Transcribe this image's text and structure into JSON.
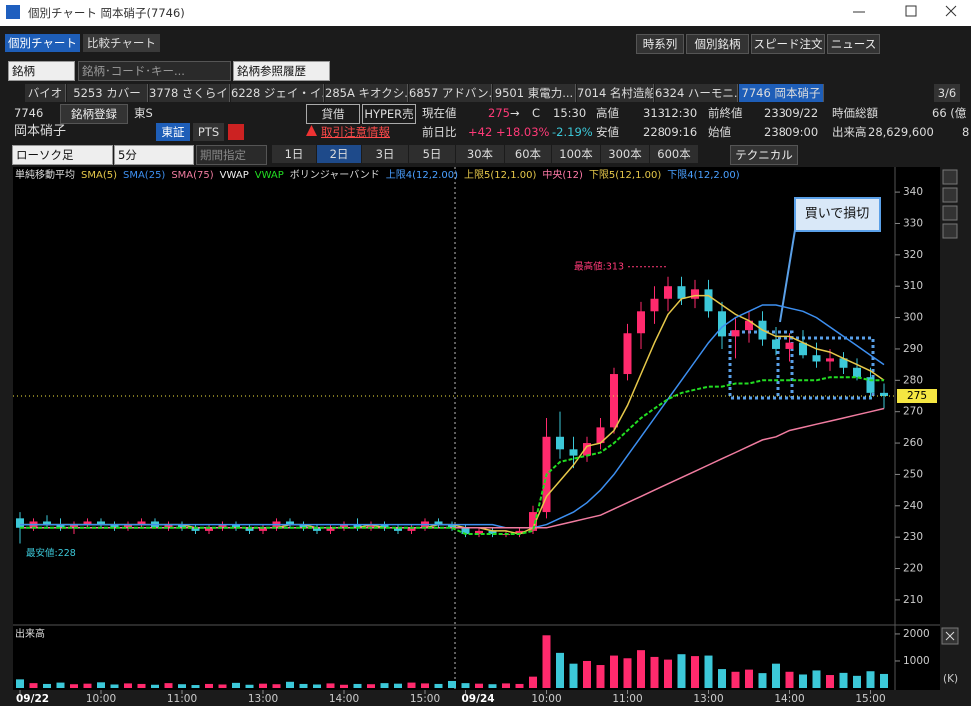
{
  "window": {
    "title": "個別チャート 岡本硝子(7746)"
  },
  "tabs": [
    "個別チャート",
    "比較チャート"
  ],
  "toolbar": [
    "時系列",
    "個別銘柄",
    "スピード注文",
    "ニュース"
  ],
  "search": {
    "type": "銘柄",
    "placeholder": "銘柄･コード･キー...",
    "history": "銘柄参照履歴"
  },
  "stock_tabs": [
    "バイオ",
    "5253 カバー",
    "3778 さくらイ...",
    "6228 ジェイ・イ...",
    "285A キオクシ...",
    "6857 アドバン...",
    "9501 東電力...",
    "7014 名村造船",
    "6324 ハーモニ...",
    "7746 岡本硝子"
  ],
  "page": "3/6",
  "info": {
    "code": "7746",
    "name": "岡本硝子",
    "register": "銘柄登録",
    "market": "東S",
    "exchanges": [
      "東証",
      "PTS"
    ],
    "margin": "貸借",
    "hyper": "HYPER売",
    "warning": "取引注意情報"
  },
  "quote": {
    "row1": [
      {
        "label": "現在値",
        "value": "275",
        "extra": "→",
        "flag": "C",
        "time": "15:30"
      },
      {
        "label": "高値",
        "value": "313",
        "time": "12:30"
      },
      {
        "label": "前終値",
        "value": "233",
        "time": "09/22"
      },
      {
        "label": "時価総額",
        "value": "66 (億"
      }
    ],
    "row2": [
      {
        "label": "前日比",
        "value": "+42",
        "pct": "+18.03%",
        "pct2": "-2.19%"
      },
      {
        "label": "安値",
        "value": "228",
        "time": "09:16"
      },
      {
        "label": "始値",
        "value": "238",
        "time": "09:00"
      },
      {
        "label": "出来高",
        "value": "28,629,600",
        "extra": "8"
      }
    ]
  },
  "controls": {
    "chart_type": "ローソク足",
    "interval": "5分",
    "range": "期間指定",
    "periods": [
      "1日",
      "2日",
      "3日",
      "5日",
      "30本",
      "60本",
      "100本",
      "300本",
      "600本"
    ],
    "active_period": "2日",
    "technical": "テクニカル"
  },
  "chart_data": {
    "type": "candlestick",
    "legend_title": "単純移動平均",
    "vwap_label": "VWAP",
    "bollinger_title": "ボリンジャーバンド",
    "bollinger": [
      {
        "name": "上限4(12,2.00)",
        "color": "#4aa0ff"
      },
      {
        "name": "上限5(12,1.00)",
        "color": "#e6c84a"
      },
      {
        "name": "中央(12)",
        "color": "#ff7aa8"
      },
      {
        "name": "下限5(12,1.00)",
        "color": "#e6c84a"
      },
      {
        "name": "下限4(12,2.00)",
        "color": "#4aa0ff"
      }
    ],
    "up_color": "#ff2a6d",
    "down_color": "#3cc8d8",
    "categories": [
      "09/22",
      null,
      null,
      null,
      null,
      null,
      "10:00",
      null,
      null,
      null,
      null,
      null,
      "11:00",
      null,
      null,
      null,
      null,
      null,
      "13:00",
      null,
      null,
      null,
      null,
      null,
      "14:00",
      null,
      null,
      null,
      null,
      null,
      "15:00",
      null,
      null,
      "09/24",
      null,
      null,
      null,
      null,
      null,
      "10:00",
      null,
      null,
      null,
      null,
      null,
      "11:00",
      null,
      null,
      null,
      null,
      null,
      "13:00",
      null,
      null,
      null,
      null,
      null,
      "14:00",
      null,
      null,
      null,
      null,
      null,
      "15:00",
      null
    ],
    "open": [
      236,
      233,
      235,
      234,
      233,
      234,
      235,
      234,
      233,
      234,
      235,
      233,
      234,
      233,
      232,
      233,
      234,
      233,
      232,
      233,
      235,
      234,
      233,
      232,
      233,
      234,
      233,
      234,
      233,
      232,
      233,
      235,
      234,
      233,
      231,
      232,
      231,
      231,
      232,
      238,
      262,
      258,
      256,
      260,
      265,
      282,
      295,
      302,
      306,
      310,
      306,
      309,
      302,
      294,
      296,
      299,
      293,
      290,
      292,
      288,
      286,
      287,
      284,
      281,
      276
    ],
    "high": [
      238,
      236,
      237,
      236,
      235,
      236,
      236,
      235,
      235,
      236,
      236,
      235,
      235,
      234,
      234,
      235,
      235,
      234,
      234,
      236,
      236,
      235,
      234,
      234,
      235,
      236,
      235,
      235,
      234,
      234,
      236,
      236,
      235,
      234,
      233,
      233,
      232,
      233,
      240,
      268,
      270,
      262,
      262,
      268,
      284,
      298,
      305,
      310,
      313,
      313,
      312,
      312,
      305,
      300,
      302,
      302,
      297,
      295,
      296,
      292,
      290,
      289,
      287,
      284,
      279
    ],
    "low": [
      228,
      232,
      233,
      232,
      231,
      233,
      233,
      232,
      232,
      233,
      233,
      232,
      232,
      231,
      231,
      232,
      232,
      231,
      231,
      232,
      233,
      232,
      231,
      231,
      232,
      232,
      232,
      232,
      231,
      231,
      232,
      233,
      232,
      230,
      230,
      230,
      230,
      230,
      231,
      236,
      255,
      252,
      254,
      258,
      263,
      280,
      290,
      298,
      302,
      304,
      303,
      300,
      290,
      287,
      292,
      291,
      288,
      286,
      287,
      284,
      283,
      282,
      280,
      274,
      271
    ],
    "close": [
      233,
      235,
      234,
      233,
      234,
      235,
      234,
      233,
      234,
      235,
      233,
      234,
      233,
      232,
      233,
      234,
      233,
      232,
      233,
      235,
      234,
      233,
      232,
      233,
      234,
      233,
      234,
      233,
      232,
      233,
      235,
      234,
      233,
      231,
      232,
      231,
      231,
      232,
      238,
      262,
      258,
      256,
      260,
      265,
      282,
      295,
      302,
      306,
      310,
      306,
      309,
      302,
      294,
      296,
      299,
      293,
      290,
      292,
      288,
      286,
      287,
      284,
      281,
      276,
      275
    ],
    "series": [
      {
        "name": "SMA(5)",
        "color": "#e6c84a",
        "values": [
          234,
          234,
          234,
          234,
          234,
          234,
          234,
          234,
          234,
          234,
          234,
          234,
          234,
          233,
          233,
          233,
          233,
          233,
          233,
          233,
          234,
          234,
          233,
          233,
          233,
          233,
          234,
          233,
          233,
          233,
          233,
          234,
          234,
          233,
          233,
          232,
          232,
          231,
          233,
          243,
          248,
          253,
          259,
          260,
          264,
          272,
          282,
          292,
          301,
          306,
          307,
          307,
          304,
          301,
          299,
          296,
          294,
          294,
          292,
          290,
          289,
          287,
          285,
          283,
          280
        ]
      },
      {
        "name": "SMA(25)",
        "color": "#3d8ff0",
        "values": [
          234,
          234,
          234,
          234,
          234,
          234,
          234,
          234,
          234,
          234,
          234,
          234,
          234,
          234,
          234,
          234,
          234,
          234,
          234,
          234,
          234,
          234,
          234,
          234,
          234,
          234,
          234,
          234,
          234,
          234,
          234,
          234,
          234,
          234,
          234,
          234,
          233,
          233,
          233,
          234,
          236,
          238,
          241,
          245,
          250,
          256,
          262,
          268,
          274,
          280,
          286,
          292,
          297,
          300,
          302,
          304,
          304,
          303,
          302,
          300,
          297,
          294,
          291,
          288,
          285
        ]
      },
      {
        "name": "SMA(75)",
        "color": "#f07ca0",
        "values": [
          233,
          233,
          233,
          233,
          233,
          233,
          233,
          233,
          233,
          233,
          233,
          233,
          233,
          233,
          233,
          233,
          233,
          233,
          233,
          233,
          233,
          233,
          233,
          233,
          233,
          233,
          233,
          233,
          233,
          233,
          233,
          233,
          233,
          233,
          233,
          233,
          233,
          233,
          233,
          233,
          234,
          235,
          236,
          237,
          239,
          241,
          243,
          245,
          247,
          249,
          251,
          253,
          255,
          257,
          259,
          261,
          262,
          264,
          265,
          266,
          267,
          268,
          269,
          270,
          271
        ]
      },
      {
        "name": "VWAP",
        "color": "#22dd22",
        "values": [
          233,
          233,
          233,
          233,
          233,
          233,
          233,
          233,
          233,
          233,
          233,
          233,
          233,
          233,
          233,
          233,
          233,
          233,
          233,
          233,
          233,
          233,
          233,
          233,
          233,
          233,
          233,
          233,
          233,
          233,
          233,
          233,
          233,
          231,
          231,
          231,
          231,
          231,
          232,
          250,
          254,
          255,
          256,
          257,
          260,
          264,
          268,
          271,
          274,
          276,
          277,
          278,
          278,
          279,
          279,
          280,
          280,
          280,
          280,
          280,
          281,
          281,
          281,
          280,
          280
        ]
      }
    ],
    "ylim": [
      202,
      348
    ],
    "yticks": [
      210,
      220,
      230,
      240,
      250,
      260,
      270,
      280,
      290,
      300,
      310,
      320,
      330,
      340
    ],
    "current_price": 275,
    "current_color": "#f5e642",
    "annotations": {
      "high": "最高値:313",
      "low": "最安値:228",
      "callout": "買いで損切"
    },
    "volume": {
      "title": "出来高",
      "unit": "(K)",
      "ylim": [
        0,
        2220
      ],
      "yticks": [
        1000,
        2000
      ],
      "values": [
        320,
        180,
        150,
        200,
        140,
        160,
        210,
        130,
        170,
        150,
        120,
        180,
        140,
        110,
        150,
        130,
        190,
        120,
        160,
        140,
        230,
        150,
        130,
        170,
        120,
        150,
        140,
        180,
        160,
        200,
        170,
        150,
        260,
        180,
        160,
        140,
        170,
        150,
        420,
        1950,
        1300,
        900,
        1000,
        850,
        1200,
        1100,
        1400,
        1150,
        1050,
        1250,
        1180,
        1200,
        700,
        600,
        680,
        550,
        900,
        600,
        500,
        650,
        480,
        560,
        450,
        620,
        520
      ]
    }
  }
}
